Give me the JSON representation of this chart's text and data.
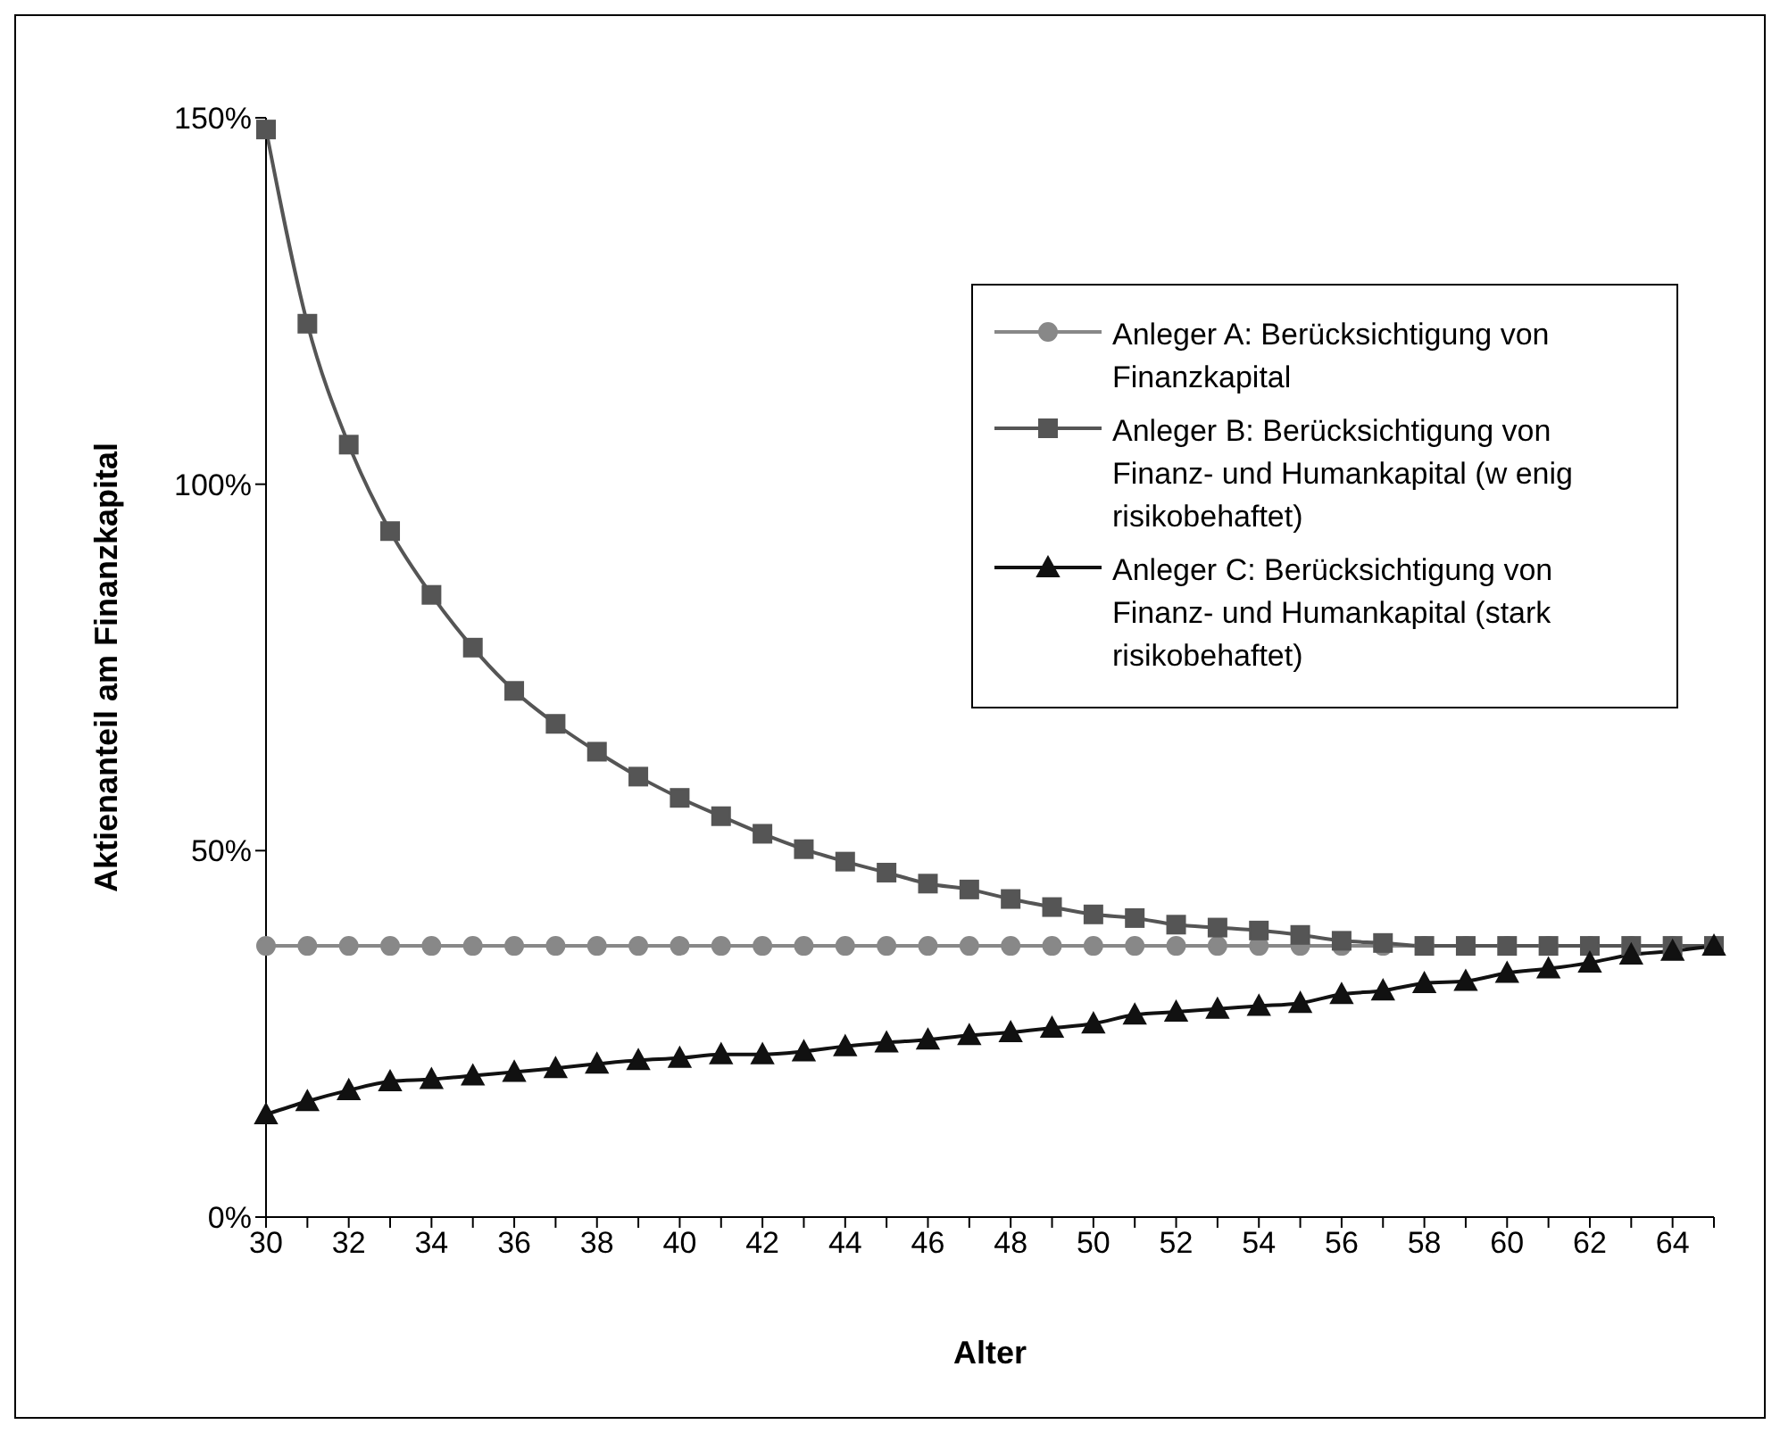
{
  "chart_data": {
    "type": "line",
    "xlabel": "Alter",
    "ylabel": "Aktienanteil am Finanzkapital",
    "categories": [
      "30",
      null,
      "32",
      null,
      "34",
      null,
      "36",
      null,
      "38",
      null,
      "40",
      null,
      "42",
      null,
      "44",
      null,
      "46",
      null,
      "48",
      null,
      "50",
      null,
      "52",
      null,
      "54",
      null,
      "56",
      null,
      "58",
      null,
      "60",
      null,
      "62",
      null,
      "64",
      null
    ],
    "ylim": [
      0,
      150
    ],
    "yticks": [
      {
        "value": 0,
        "label": "0%"
      },
      {
        "value": 50,
        "label": "50%"
      },
      {
        "value": 100,
        "label": "100%"
      },
      {
        "value": 150,
        "label": "150%"
      }
    ],
    "grid": false,
    "legend": "top right",
    "line_style": "solid",
    "series": [
      {
        "name": "Anleger A: Berücksichtigung von Finanzkapital",
        "color": "#888888",
        "marker": "circle",
        "values": [
          37,
          37,
          37,
          37,
          37,
          37,
          37,
          37,
          37,
          37,
          37,
          37,
          37,
          37,
          37,
          37,
          37,
          37,
          37,
          37,
          37,
          37,
          37,
          37,
          37,
          37,
          37,
          37,
          37,
          37,
          37,
          37,
          37,
          37,
          37,
          37
        ]
      },
      {
        "name": "Anleger B: Berücksichtigung von Finanz- und Humankapital (w enig risikobehaftet)",
        "color": "#555555",
        "marker": "square",
        "values": [
          148.4,
          121.9,
          105.4,
          93.6,
          84.9,
          77.7,
          71.8,
          67.3,
          63.5,
          60.1,
          57.2,
          54.7,
          52.3,
          50.2,
          48.5,
          47,
          45.5,
          44.7,
          43.4,
          42.3,
          41.3,
          40.8,
          39.9,
          39.5,
          39.1,
          38.5,
          37.7,
          37.4,
          37,
          37,
          37,
          37,
          37,
          37,
          37,
          37
        ]
      },
      {
        "name": "Anleger C: Berücksichtigung von Finanz- und Humankapital (stark risikobehaftet)",
        "color": "#111111",
        "marker": "triangle",
        "values": [
          14,
          15.8,
          17.3,
          18.5,
          18.8,
          19.3,
          19.8,
          20.3,
          20.9,
          21.4,
          21.7,
          22.2,
          22.2,
          22.6,
          23.3,
          23.8,
          24.2,
          24.8,
          25.2,
          25.8,
          26.4,
          27.6,
          28,
          28.4,
          28.8,
          29.2,
          30.4,
          30.9,
          31.9,
          32.2,
          33.3,
          33.9,
          34.7,
          35.8,
          36.3,
          37
        ]
      }
    ]
  }
}
